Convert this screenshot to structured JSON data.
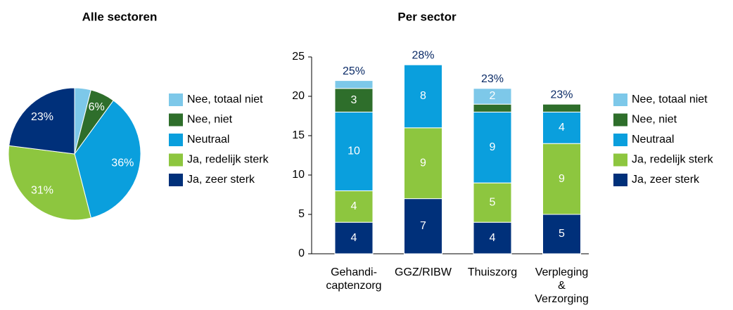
{
  "chart_data": [
    {
      "type": "pie",
      "title": "Alle sectoren",
      "categories": [
        "Nee, totaal niet",
        "Nee, niet",
        "Neutraal",
        "Ja, redelijk sterk",
        "Ja, zeer sterk"
      ],
      "values": [
        4,
        6,
        36,
        31,
        23
      ],
      "value_labels": [
        null,
        "6%",
        "36%",
        "31%",
        "23%"
      ],
      "colors": [
        "#7dc8e9",
        "#2e6e2b",
        "#0a9fdd",
        "#8dc63f",
        "#00307a"
      ],
      "legend": "right"
    },
    {
      "type": "stacked_bar",
      "title": "Per sector",
      "categories": [
        "Gehandi-\ncaptenzorg",
        "GGZ/RIBW",
        "Thuiszorg",
        "Verpleging\n&\nVerzorging"
      ],
      "top_labels": [
        "25%",
        "28%",
        "23%",
        "23%"
      ],
      "series": [
        {
          "name": "Ja, zeer sterk",
          "color": "#00307a",
          "values": [
            4,
            7,
            4,
            5
          ],
          "value_labels": [
            "4",
            "7",
            "4",
            "5"
          ]
        },
        {
          "name": "Ja, redelijk sterk",
          "color": "#8dc63f",
          "values": [
            4,
            9,
            5,
            9
          ],
          "value_labels": [
            "4",
            "9",
            "5",
            "9"
          ]
        },
        {
          "name": "Neutraal",
          "color": "#0a9fdd",
          "values": [
            10,
            8,
            9,
            4
          ],
          "value_labels": [
            "10",
            "8",
            "9",
            "4"
          ]
        },
        {
          "name": "Nee, niet",
          "color": "#2e6e2b",
          "values": [
            3,
            0,
            1,
            1
          ],
          "value_labels": [
            "3",
            null,
            null,
            null
          ]
        },
        {
          "name": "Nee, totaal niet",
          "color": "#7dc8e9",
          "values": [
            1,
            0,
            2,
            0
          ],
          "value_labels": [
            null,
            null,
            "2",
            null
          ]
        }
      ],
      "ylim": [
        0,
        25
      ],
      "yticks": [
        0,
        5,
        10,
        15,
        20,
        25
      ],
      "grid": false,
      "legend": "right"
    }
  ]
}
